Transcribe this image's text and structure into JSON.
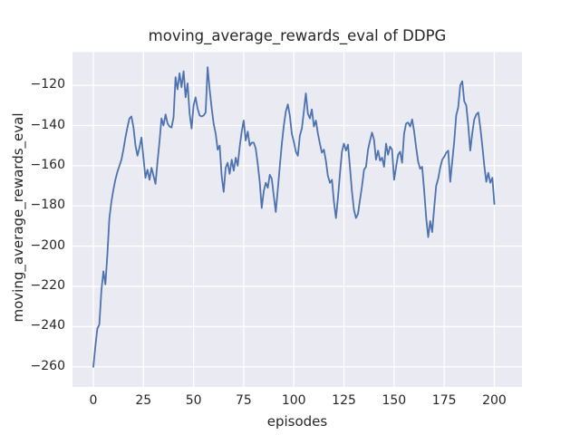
{
  "figure": {
    "title": "moving_average_rewards_eval of DDPG",
    "xlabel": "episodes",
    "ylabel": "moving_average_rewards_eval"
  },
  "chart_data": {
    "type": "line",
    "title": "moving_average_rewards_eval of DDPG",
    "xlabel": "episodes",
    "ylabel": "moving_average_rewards_eval",
    "grid": true,
    "legend": false,
    "plot_bg_color": "#eaeaf2",
    "grid_color": "#ffffff",
    "line_color": "#4c72b0",
    "text_color": "#262626",
    "xticks": [
      0,
      25,
      50,
      75,
      100,
      125,
      150,
      175,
      200
    ],
    "yticks": [
      -120,
      -140,
      -160,
      -180,
      -200,
      -220,
      -240,
      -260
    ],
    "xlim": [
      -10.4,
      213.8
    ],
    "ylim": [
      -270,
      -103.5
    ],
    "series": [
      {
        "name": "moving_average_rewards_eval",
        "x_start": 0,
        "x_step": 1,
        "values": [
          -260,
          -250,
          -241,
          -239,
          -222,
          -212.5,
          -219,
          -204,
          -186,
          -178,
          -172,
          -167,
          -163,
          -160,
          -157,
          -152,
          -146,
          -141,
          -136.5,
          -135.5,
          -141,
          -150,
          -155,
          -151,
          -146,
          -156,
          -166,
          -162,
          -167,
          -161,
          -165,
          -169,
          -158,
          -148,
          -136.5,
          -140,
          -134.5,
          -139,
          -140.5,
          -141,
          -136,
          -116,
          -122,
          -114,
          -121,
          -113,
          -126,
          -119,
          -134,
          -141.5,
          -130,
          -126,
          -131.5,
          -135,
          -135.5,
          -135,
          -133.5,
          -111,
          -122,
          -131,
          -139,
          -144,
          -152,
          -150,
          -165,
          -173,
          -161,
          -158.5,
          -164,
          -157,
          -162.5,
          -156,
          -160,
          -150.5,
          -143,
          -137.5,
          -147.5,
          -143,
          -150,
          -148.5,
          -148.5,
          -151.5,
          -159,
          -168,
          -181,
          -172.5,
          -168.5,
          -171,
          -164.5,
          -166.5,
          -175,
          -183,
          -172,
          -160,
          -149,
          -140,
          -133,
          -129.5,
          -135,
          -144,
          -148,
          -153,
          -155,
          -145,
          -141.5,
          -133,
          -124,
          -134,
          -136.5,
          -132,
          -140.5,
          -137.5,
          -144,
          -149,
          -153.5,
          -152,
          -157.5,
          -165,
          -168.5,
          -167,
          -178,
          -186,
          -176,
          -164,
          -153,
          -149,
          -152.5,
          -149.5,
          -161,
          -173,
          -182,
          -186,
          -184,
          -177,
          -170,
          -162,
          -160.5,
          -152,
          -147.5,
          -143.5,
          -147,
          -157,
          -152.5,
          -157.5,
          -156,
          -160.5,
          -149,
          -154.5,
          -150.5,
          -152,
          -167,
          -160.5,
          -154.5,
          -153,
          -158.5,
          -144,
          -139,
          -138.5,
          -140.5,
          -137,
          -143,
          -151,
          -158,
          -161.5,
          -160.5,
          -172,
          -186,
          -195.5,
          -187.5,
          -193,
          -181,
          -170,
          -166.5,
          -161,
          -157,
          -155.5,
          -153.5,
          -152.5,
          -168,
          -158,
          -148,
          -135,
          -131,
          -120,
          -118,
          -128,
          -130,
          -140,
          -152.5,
          -144,
          -137,
          -134.5,
          -133.5,
          -141,
          -150,
          -160,
          -168,
          -163.5,
          -168.5,
          -166,
          -179
        ]
      }
    ]
  }
}
